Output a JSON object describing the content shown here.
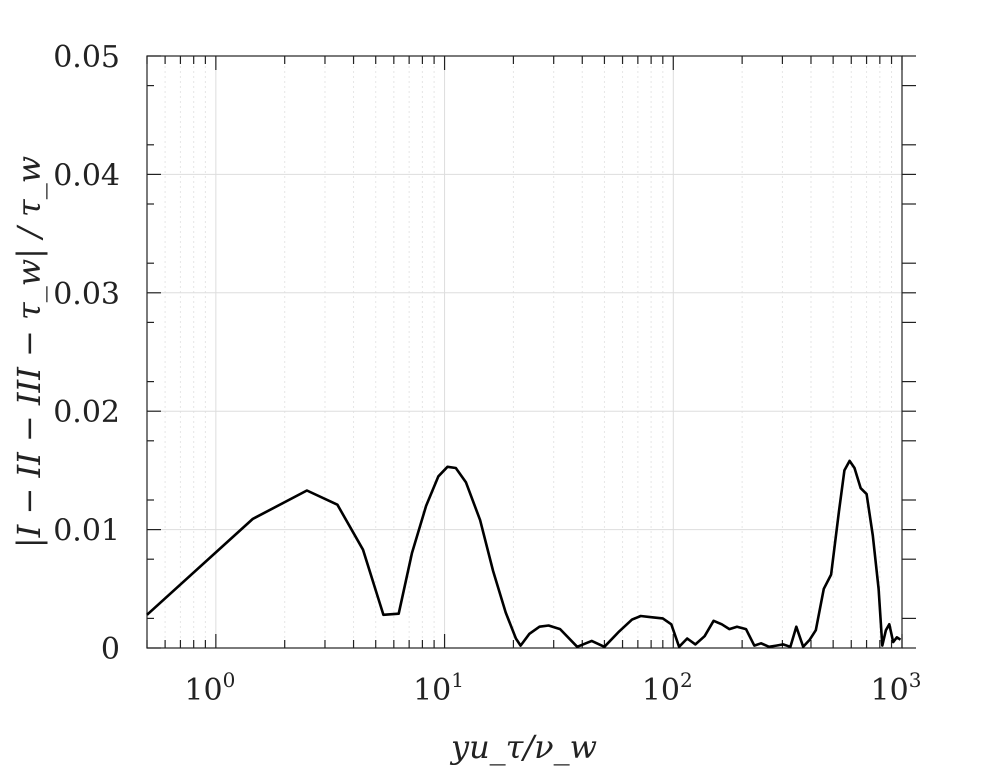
{
  "chart_data": {
    "type": "line",
    "xscale": "log",
    "xlim": [
      0.5,
      1000
    ],
    "ylim": [
      0,
      0.05
    ],
    "grid": true,
    "xlabel": "yu_τ/ν_w",
    "ylabel": "|I − II − III − τ_w| / τ_w",
    "x_ticks": [
      {
        "value": 1,
        "label": "10",
        "exp": "0"
      },
      {
        "value": 10,
        "label": "10",
        "exp": "1"
      },
      {
        "value": 100,
        "label": "10",
        "exp": "2"
      },
      {
        "value": 1000,
        "label": "10",
        "exp": "3"
      }
    ],
    "y_ticks": [
      {
        "value": 0,
        "label": "0"
      },
      {
        "value": 0.01,
        "label": "0.01"
      },
      {
        "value": 0.02,
        "label": "0.02"
      },
      {
        "value": 0.03,
        "label": "0.03"
      },
      {
        "value": 0.04,
        "label": "0.04"
      },
      {
        "value": 0.05,
        "label": "0.05"
      }
    ],
    "series": [
      {
        "color": "#000000",
        "x": [
          0.5,
          1.45,
          2.5,
          3.4,
          4.4,
          5.4,
          6.3,
          7.2,
          8.3,
          9.4,
          10.3,
          11.2,
          12.4,
          14.3,
          16.3,
          18.5,
          20.5,
          21.5,
          23.5,
          26.0,
          28.5,
          32.0,
          38.0,
          44.0,
          50.0,
          58.0,
          66.0,
          72.0,
          80.0,
          90.0,
          98.0,
          106.0,
          115.0,
          125.0,
          137.0,
          150.0,
          163.0,
          176.0,
          190.0,
          208.0,
          226.0,
          242.0,
          262.0,
          282.0,
          302.0,
          325.0,
          345.0,
          370.0,
          395.0,
          420.0,
          455.0,
          490.0,
          530.0,
          560.0,
          590.0,
          620.0,
          660.0,
          700.0,
          745.0,
          790.0,
          820.0,
          850.0,
          880.0,
          915.0,
          950.0,
          985.0
        ],
        "y": [
          0.0028,
          0.0109,
          0.0133,
          0.0121,
          0.0083,
          0.0028,
          0.0029,
          0.008,
          0.012,
          0.0145,
          0.0153,
          0.0152,
          0.014,
          0.0108,
          0.0065,
          0.003,
          0.0008,
          0.0002,
          0.0012,
          0.0018,
          0.0019,
          0.0016,
          0.0001,
          0.0006,
          0.0001,
          0.0014,
          0.0024,
          0.0027,
          0.0026,
          0.0025,
          0.002,
          0.0001,
          0.0008,
          0.0003,
          0.001,
          0.0023,
          0.002,
          0.0016,
          0.0018,
          0.0016,
          0.0002,
          0.0004,
          0.0001,
          0.0002,
          0.0003,
          0.0001,
          0.0018,
          0.0001,
          0.0007,
          0.0015,
          0.005,
          0.0062,
          0.0115,
          0.015,
          0.0158,
          0.0152,
          0.0135,
          0.013,
          0.0095,
          0.005,
          0.0002,
          0.0015,
          0.002,
          0.0005,
          0.0009,
          0.0007
        ]
      }
    ]
  }
}
